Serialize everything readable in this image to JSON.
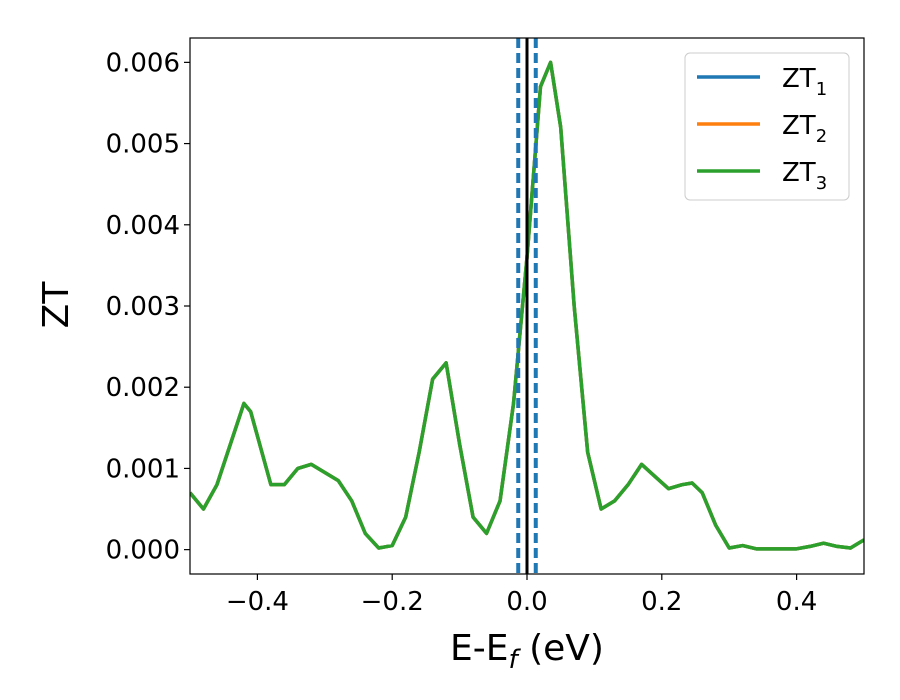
{
  "chart_data": {
    "type": "line",
    "xlabel": {
      "main": "E-E",
      "sub": "f",
      "suffix": " (eV)"
    },
    "ylabel": "ZT",
    "xlim": [
      -0.5,
      0.5
    ],
    "ylim": [
      -0.0003,
      0.0063
    ],
    "x_ticks": [
      -0.4,
      -0.2,
      0.0,
      0.2,
      0.4
    ],
    "x_tick_labels": [
      "−0.4",
      "−0.2",
      "0.0",
      "0.2",
      "0.4"
    ],
    "y_ticks": [
      0.0,
      0.001,
      0.002,
      0.003,
      0.004,
      0.005,
      0.006
    ],
    "y_tick_labels": [
      "0.000",
      "0.001",
      "0.002",
      "0.003",
      "0.004",
      "0.005",
      "0.006"
    ],
    "grid": false,
    "legend_position": "top-right",
    "vertical_lines": [
      {
        "x": 0.0,
        "style": "solid",
        "color": "#000000"
      },
      {
        "x": -0.013,
        "style": "dashed",
        "color": "#1f77b4"
      },
      {
        "x": 0.013,
        "style": "dashed",
        "color": "#1f77b4"
      }
    ],
    "x": [
      -0.5,
      -0.48,
      -0.46,
      -0.44,
      -0.42,
      -0.41,
      -0.4,
      -0.38,
      -0.36,
      -0.34,
      -0.32,
      -0.3,
      -0.28,
      -0.26,
      -0.24,
      -0.22,
      -0.2,
      -0.18,
      -0.16,
      -0.14,
      -0.12,
      -0.1,
      -0.08,
      -0.06,
      -0.04,
      -0.02,
      0.0,
      0.02,
      0.035,
      0.05,
      0.07,
      0.09,
      0.11,
      0.13,
      0.15,
      0.17,
      0.19,
      0.21,
      0.23,
      0.245,
      0.26,
      0.28,
      0.3,
      0.32,
      0.34,
      0.36,
      0.38,
      0.4,
      0.42,
      0.44,
      0.46,
      0.48,
      0.5
    ],
    "series": [
      {
        "name": "ZT",
        "sub": "1",
        "color": "#1f77b4",
        "values": [
          0.0007,
          0.0005,
          0.0008,
          0.0013,
          0.0018,
          0.0017,
          0.0014,
          0.0008,
          0.0008,
          0.001,
          0.00105,
          0.00095,
          0.00085,
          0.0006,
          0.0002,
          2e-05,
          5e-05,
          0.0004,
          0.0012,
          0.0021,
          0.0023,
          0.0013,
          0.0004,
          0.0002,
          0.0006,
          0.0018,
          0.0036,
          0.0057,
          0.006,
          0.0052,
          0.003,
          0.0012,
          0.0005,
          0.0006,
          0.0008,
          0.00105,
          0.0009,
          0.00075,
          0.0008,
          0.00082,
          0.0007,
          0.0003,
          2e-05,
          5e-05,
          1e-05,
          1e-05,
          1e-05,
          1e-05,
          4e-05,
          8e-05,
          4e-05,
          2e-05,
          0.00012
        ]
      },
      {
        "name": "ZT",
        "sub": "2",
        "color": "#ff7f0e",
        "values": [
          0.0007,
          0.0005,
          0.0008,
          0.0013,
          0.0018,
          0.0017,
          0.0014,
          0.0008,
          0.0008,
          0.001,
          0.00105,
          0.00095,
          0.00085,
          0.0006,
          0.0002,
          2e-05,
          5e-05,
          0.0004,
          0.0012,
          0.0021,
          0.0023,
          0.0013,
          0.0004,
          0.0002,
          0.0006,
          0.0018,
          0.0036,
          0.0057,
          0.006,
          0.0052,
          0.003,
          0.0012,
          0.0005,
          0.0006,
          0.0008,
          0.00105,
          0.0009,
          0.00075,
          0.0008,
          0.00082,
          0.0007,
          0.0003,
          2e-05,
          5e-05,
          1e-05,
          1e-05,
          1e-05,
          1e-05,
          4e-05,
          8e-05,
          4e-05,
          2e-05,
          0.00012
        ]
      },
      {
        "name": "ZT",
        "sub": "3",
        "color": "#2ca02c",
        "values": [
          0.0007,
          0.0005,
          0.0008,
          0.0013,
          0.0018,
          0.0017,
          0.0014,
          0.0008,
          0.0008,
          0.001,
          0.00105,
          0.00095,
          0.00085,
          0.0006,
          0.0002,
          2e-05,
          5e-05,
          0.0004,
          0.0012,
          0.0021,
          0.0023,
          0.0013,
          0.0004,
          0.0002,
          0.0006,
          0.0018,
          0.0036,
          0.0057,
          0.006,
          0.0052,
          0.003,
          0.0012,
          0.0005,
          0.0006,
          0.0008,
          0.00105,
          0.0009,
          0.00075,
          0.0008,
          0.00082,
          0.0007,
          0.0003,
          2e-05,
          5e-05,
          1e-05,
          1e-05,
          1e-05,
          1e-05,
          4e-05,
          8e-05,
          4e-05,
          2e-05,
          0.00012
        ]
      }
    ]
  }
}
